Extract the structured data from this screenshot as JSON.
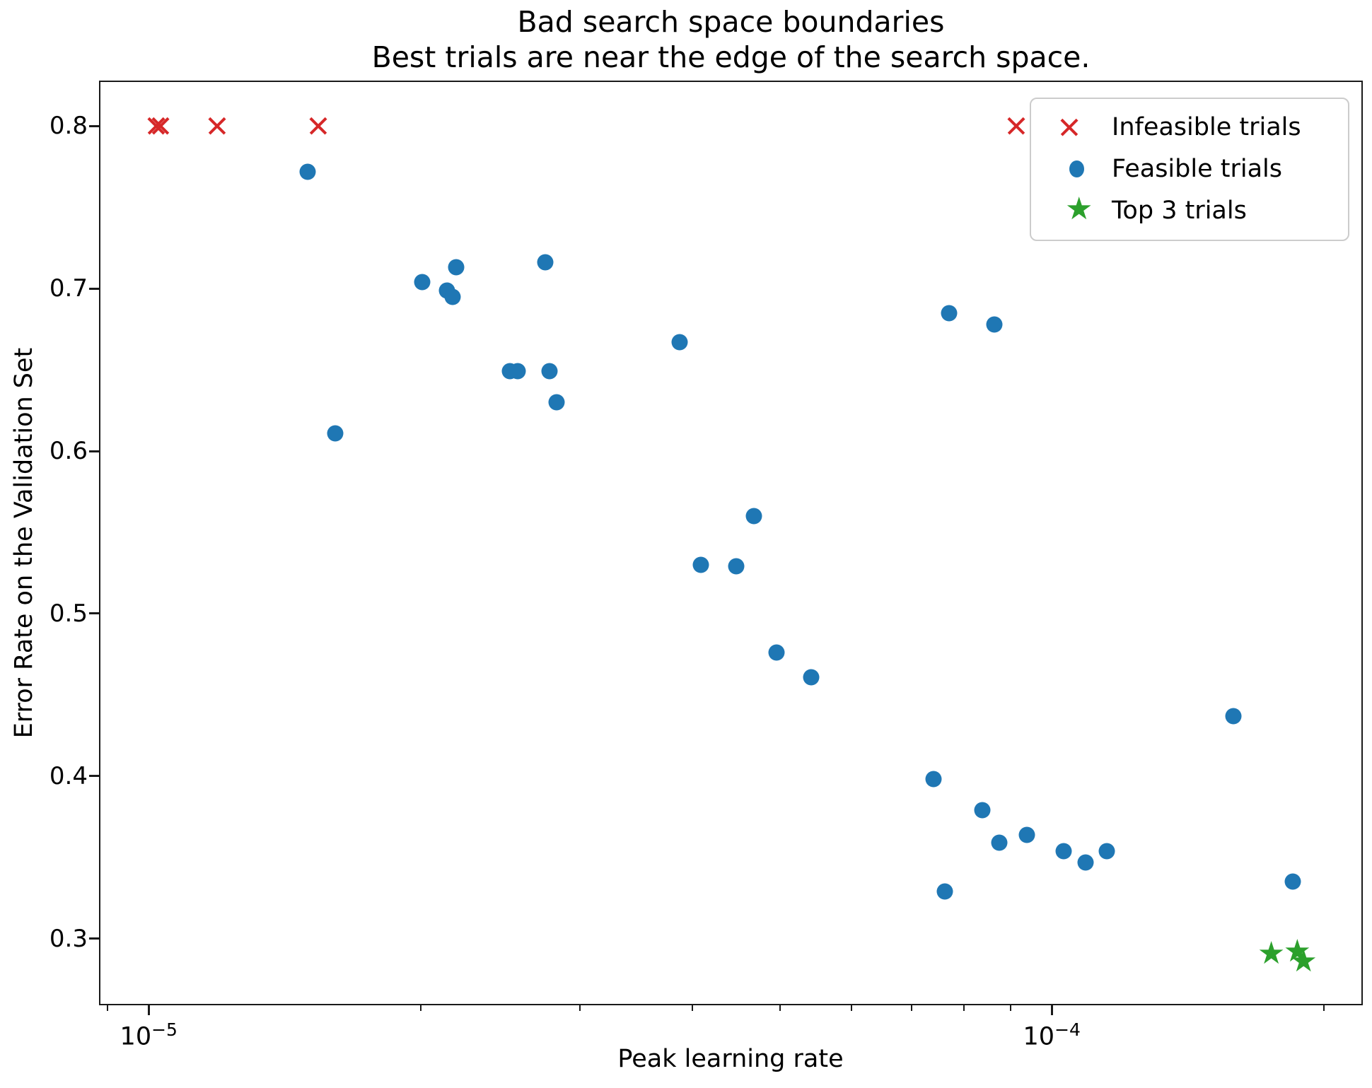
{
  "chart_data": {
    "type": "scatter",
    "title": "Bad search space boundaries",
    "subtitle": "Best trials are near the edge of the search space.",
    "xlabel": "Peak learning rate",
    "ylabel": "Error Rate on the Validation Set",
    "x_scale": "log",
    "grid": false,
    "xlim": [
      8.81e-06,
      0.000221
    ],
    "ylim": [
      0.259,
      0.828
    ],
    "x_major_ticks": [
      {
        "value": 1e-05,
        "base": "10",
        "exp": "−5"
      },
      {
        "value": 0.0001,
        "base": "10",
        "exp": "−4"
      }
    ],
    "x_minor_ticks": [
      9e-06,
      2e-05,
      3e-05,
      4e-05,
      5e-05,
      6e-05,
      7e-05,
      8e-05,
      9e-05,
      0.0002
    ],
    "y_ticks": [
      {
        "value": 0.8,
        "label": "0.8"
      },
      {
        "value": 0.7,
        "label": "0.7"
      },
      {
        "value": 0.6,
        "label": "0.6"
      },
      {
        "value": 0.5,
        "label": "0.5"
      },
      {
        "value": 0.4,
        "label": "0.4"
      },
      {
        "value": 0.3,
        "label": "0.3"
      }
    ],
    "legend_position": "upper right",
    "series": [
      {
        "name": "Infeasible trials",
        "marker": "x",
        "color": "#d62728",
        "points": [
          [
            1.02e-05,
            0.8
          ],
          [
            1.03e-05,
            0.8
          ],
          [
            1.19e-05,
            0.8
          ],
          [
            1.54e-05,
            0.8
          ],
          [
            9.14e-05,
            0.8
          ]
        ]
      },
      {
        "name": "Feasible trials",
        "marker": "circle",
        "color": "#1f77b4",
        "points": [
          [
            1.5e-05,
            0.772
          ],
          [
            1.61e-05,
            0.611
          ],
          [
            2.01e-05,
            0.704
          ],
          [
            2.14e-05,
            0.699
          ],
          [
            2.17e-05,
            0.695
          ],
          [
            2.19e-05,
            0.713
          ],
          [
            2.51e-05,
            0.649
          ],
          [
            2.56e-05,
            0.649
          ],
          [
            2.75e-05,
            0.716
          ],
          [
            2.78e-05,
            0.649
          ],
          [
            2.83e-05,
            0.63
          ],
          [
            3.87e-05,
            0.667
          ],
          [
            4.09e-05,
            0.53
          ],
          [
            4.47e-05,
            0.529
          ],
          [
            4.68e-05,
            0.56
          ],
          [
            4.96e-05,
            0.476
          ],
          [
            5.41e-05,
            0.461
          ],
          [
            7.4e-05,
            0.398
          ],
          [
            7.62e-05,
            0.329
          ],
          [
            7.69e-05,
            0.685
          ],
          [
            8.38e-05,
            0.379
          ],
          [
            8.63e-05,
            0.678
          ],
          [
            8.74e-05,
            0.359
          ],
          [
            9.39e-05,
            0.364
          ],
          [
            0.000103,
            0.354
          ],
          [
            0.000109,
            0.347
          ],
          [
            0.000115,
            0.354
          ],
          [
            0.000159,
            0.437
          ],
          [
            0.000185,
            0.335
          ]
        ]
      },
      {
        "name": "Top 3 trials",
        "marker": "star",
        "color": "#2ca02c",
        "points": [
          [
            0.000175,
            0.29
          ],
          [
            0.000187,
            0.291
          ],
          [
            0.00019,
            0.285
          ]
        ]
      }
    ]
  }
}
